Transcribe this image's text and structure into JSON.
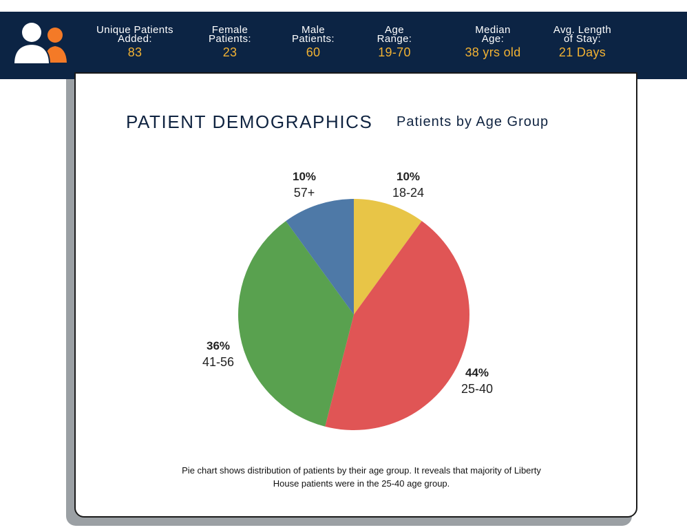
{
  "header": {
    "stats": [
      {
        "label": "Unique Patients\nAdded:",
        "value": "83"
      },
      {
        "label": "Female\nPatients:",
        "value": "23"
      },
      {
        "label": "Male\nPatients:",
        "value": "60"
      },
      {
        "label": "Age\nRange:",
        "value": "19-70"
      },
      {
        "label": "Median\nAge:",
        "value": "38 yrs old"
      },
      {
        "label": "Avg. Length\nof Stay:",
        "value": "21 Days"
      }
    ]
  },
  "icons": {
    "header_icon": "users-icon"
  },
  "colors": {
    "header_bg": "#0c2444",
    "stat_value": "#f2b233",
    "icon_orange": "#f47a27"
  },
  "caption": "Pie chart shows distribution of patients by their age group. It reveals that majority of Liberty House patients were in the 25-40 age group.",
  "chart_data": {
    "type": "pie",
    "title": "PATIENT DEMOGRAPHICS",
    "subtitle": "Patients by Age Group",
    "categories": [
      "18-24",
      "25-40",
      "41-56",
      "57+"
    ],
    "values": [
      10,
      44,
      36,
      10
    ],
    "value_labels": [
      "10%",
      "44%",
      "36%",
      "10%"
    ],
    "colors": [
      "#e8c547",
      "#e05555",
      "#59a14f",
      "#4e79a7"
    ],
    "start_angle_deg": 0,
    "direction": "clockwise"
  }
}
